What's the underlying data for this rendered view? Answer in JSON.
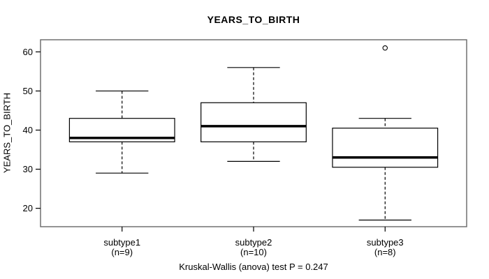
{
  "chart_data": {
    "type": "boxplot",
    "title": "YEARS_TO_BIRTH",
    "ylabel": "YEARS_TO_BIRTH",
    "footer": "Kruskal-Wallis (anova) test P = 0.247",
    "ylim": [
      15.3,
      63.1
    ],
    "yticks": [
      20,
      30,
      40,
      50,
      60
    ],
    "grid": false,
    "groups": [
      {
        "label": "subtype1",
        "n_label": "(n=9)",
        "low": 29,
        "q1": 37,
        "median": 38,
        "q3": 43,
        "high": 50,
        "outliers": []
      },
      {
        "label": "subtype2",
        "n_label": "(n=10)",
        "low": 32,
        "q1": 37,
        "median": 41,
        "q3": 47,
        "high": 56,
        "outliers": []
      },
      {
        "label": "subtype3",
        "n_label": "(n=8)",
        "low": 17,
        "q1": 30.5,
        "median": 33,
        "q3": 40.5,
        "high": 43,
        "outliers": [
          61
        ]
      }
    ]
  },
  "colors": {
    "background": "#ffffff",
    "frame_stroke": "#666666",
    "box_stroke": "#000000",
    "box_fill": "#ffffff",
    "text": "#000000"
  }
}
